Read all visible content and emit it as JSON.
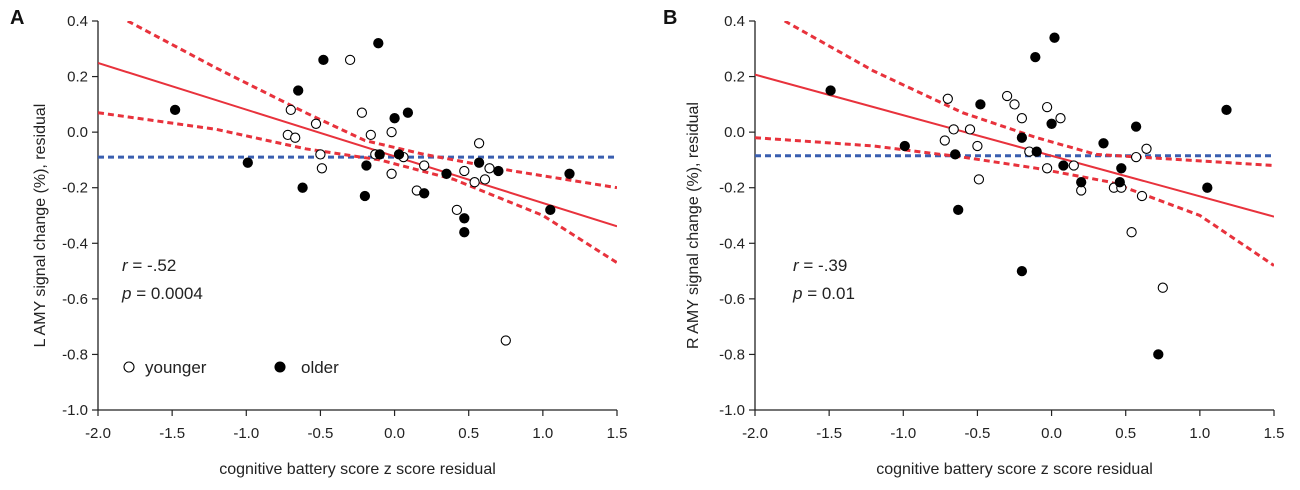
{
  "colors": {
    "fit": "#e8323c",
    "ci": "#e8323c",
    "baseline": "#3a5fb0",
    "axis": "#222222"
  },
  "legend": {
    "younger": "younger",
    "older": "older"
  },
  "chart_data": [
    {
      "type": "scatter",
      "panel_label": "A",
      "xlabel": "cognitive battery score z score residual",
      "ylabel": "L AMY signal change (%), residual",
      "xlim": [
        -2.0,
        1.5
      ],
      "ylim": [
        -1.0,
        0.4
      ],
      "xticks": [
        "-2.0",
        "-1.5",
        "-1.0",
        "-0.5",
        "0.0",
        "0.5",
        "1.0",
        "1.5"
      ],
      "yticks": [
        "0.4",
        "0.2",
        "0.0",
        "-0.2",
        "-0.4",
        "-0.6",
        "-0.8",
        "-1.0"
      ],
      "stats": {
        "r_label": "r",
        "r_value": " = -.52",
        "p_label": "p",
        "p_value": " = 0.0004"
      },
      "show_legend": true,
      "fit": {
        "slope": -0.168,
        "intercept": -0.087
      },
      "ci_upper": [
        [
          -1.8,
          0.4
        ],
        [
          -1.2,
          0.23
        ],
        [
          -0.6,
          0.07
        ],
        [
          -0.2,
          -0.03
        ],
        [
          0.2,
          -0.08
        ],
        [
          0.8,
          -0.14
        ],
        [
          1.5,
          -0.2
        ]
      ],
      "ci_lower": [
        [
          -2.0,
          0.07
        ],
        [
          -1.2,
          0.01
        ],
        [
          -0.6,
          -0.06
        ],
        [
          -0.1,
          -0.1
        ],
        [
          0.4,
          -0.17
        ],
        [
          1.0,
          -0.3
        ],
        [
          1.5,
          -0.47
        ]
      ],
      "baseline_y": -0.09,
      "series": [
        {
          "name": "younger",
          "points": [
            [
              -0.3,
              0.26
            ],
            [
              -0.7,
              0.08
            ],
            [
              -0.72,
              -0.01
            ],
            [
              -0.67,
              -0.02
            ],
            [
              -0.53,
              0.03
            ],
            [
              -0.5,
              -0.08
            ],
            [
              -0.49,
              -0.13
            ],
            [
              -0.22,
              0.07
            ],
            [
              -0.16,
              -0.01
            ],
            [
              -0.13,
              -0.08
            ],
            [
              -0.02,
              0.0
            ],
            [
              -0.02,
              -0.15
            ],
            [
              0.06,
              -0.09
            ],
            [
              0.15,
              -0.21
            ],
            [
              0.2,
              -0.12
            ],
            [
              0.42,
              -0.28
            ],
            [
              0.47,
              -0.14
            ],
            [
              0.54,
              -0.18
            ],
            [
              0.57,
              -0.04
            ],
            [
              0.61,
              -0.17
            ],
            [
              0.64,
              -0.13
            ],
            [
              0.75,
              -0.75
            ]
          ]
        },
        {
          "name": "older",
          "points": [
            [
              -1.48,
              0.08
            ],
            [
              -0.99,
              -0.11
            ],
            [
              -0.65,
              0.15
            ],
            [
              -0.62,
              -0.2
            ],
            [
              -0.48,
              0.26
            ],
            [
              -0.2,
              -0.23
            ],
            [
              -0.19,
              -0.12
            ],
            [
              -0.11,
              0.32
            ],
            [
              -0.1,
              -0.08
            ],
            [
              0.0,
              0.05
            ],
            [
              0.03,
              -0.08
            ],
            [
              0.09,
              0.07
            ],
            [
              0.2,
              -0.22
            ],
            [
              0.35,
              -0.15
            ],
            [
              0.47,
              -0.31
            ],
            [
              0.47,
              -0.36
            ],
            [
              0.57,
              -0.11
            ],
            [
              0.7,
              -0.14
            ],
            [
              1.05,
              -0.28
            ],
            [
              1.18,
              -0.15
            ]
          ]
        }
      ]
    },
    {
      "type": "scatter",
      "panel_label": "B",
      "xlabel": "cognitive battery score z score residual",
      "ylabel": "R AMY signal change (%), residual",
      "xlim": [
        -2.0,
        1.5
      ],
      "ylim": [
        -1.0,
        0.4
      ],
      "xticks": [
        "-2.0",
        "-1.5",
        "-1.0",
        "-0.5",
        "0.0",
        "0.5",
        "1.0",
        "1.5"
      ],
      "yticks": [
        "0.4",
        "0.2",
        "0.0",
        "-0.2",
        "-0.4",
        "-0.6",
        "-0.8",
        "-1.0"
      ],
      "stats": {
        "r_label": "r",
        "r_value": " = -.39",
        "p_label": "p",
        "p_value": " = 0.01"
      },
      "show_legend": false,
      "fit": {
        "slope": -0.146,
        "intercept": -0.085
      },
      "ci_upper": [
        [
          -1.8,
          0.4
        ],
        [
          -1.2,
          0.22
        ],
        [
          -0.6,
          0.07
        ],
        [
          -0.1,
          -0.02
        ],
        [
          0.3,
          -0.08
        ],
        [
          0.9,
          -0.1
        ],
        [
          1.5,
          -0.12
        ]
      ],
      "ci_lower": [
        [
          -2.0,
          -0.02
        ],
        [
          -1.2,
          -0.05
        ],
        [
          -0.6,
          -0.09
        ],
        [
          -0.1,
          -0.13
        ],
        [
          0.4,
          -0.18
        ],
        [
          1.0,
          -0.3
        ],
        [
          1.5,
          -0.48
        ]
      ],
      "baseline_y": -0.085,
      "series": [
        {
          "name": "younger",
          "points": [
            [
              -0.7,
              0.12
            ],
            [
              -0.66,
              0.01
            ],
            [
              -0.72,
              -0.03
            ],
            [
              -0.55,
              0.01
            ],
            [
              -0.5,
              -0.05
            ],
            [
              -0.49,
              -0.17
            ],
            [
              -0.3,
              0.13
            ],
            [
              -0.25,
              0.1
            ],
            [
              -0.2,
              0.05
            ],
            [
              -0.15,
              -0.07
            ],
            [
              -0.03,
              0.09
            ],
            [
              -0.03,
              -0.13
            ],
            [
              0.06,
              0.05
            ],
            [
              0.15,
              -0.12
            ],
            [
              0.2,
              -0.21
            ],
            [
              0.42,
              -0.2
            ],
            [
              0.47,
              -0.2
            ],
            [
              0.54,
              -0.36
            ],
            [
              0.57,
              -0.09
            ],
            [
              0.61,
              -0.23
            ],
            [
              0.64,
              -0.06
            ],
            [
              0.75,
              -0.56
            ]
          ]
        },
        {
          "name": "older",
          "points": [
            [
              -1.49,
              0.15
            ],
            [
              -0.99,
              -0.05
            ],
            [
              -0.65,
              -0.08
            ],
            [
              -0.63,
              -0.28
            ],
            [
              -0.48,
              0.1
            ],
            [
              -0.2,
              -0.5
            ],
            [
              -0.2,
              -0.02
            ],
            [
              -0.11,
              0.27
            ],
            [
              -0.1,
              -0.07
            ],
            [
              0.0,
              0.03
            ],
            [
              0.02,
              0.34
            ],
            [
              0.08,
              -0.12
            ],
            [
              0.2,
              -0.18
            ],
            [
              0.35,
              -0.04
            ],
            [
              0.46,
              -0.18
            ],
            [
              0.47,
              -0.13
            ],
            [
              0.57,
              0.02
            ],
            [
              0.72,
              -0.8
            ],
            [
              1.05,
              -0.2
            ],
            [
              1.18,
              0.08
            ]
          ]
        }
      ]
    }
  ]
}
